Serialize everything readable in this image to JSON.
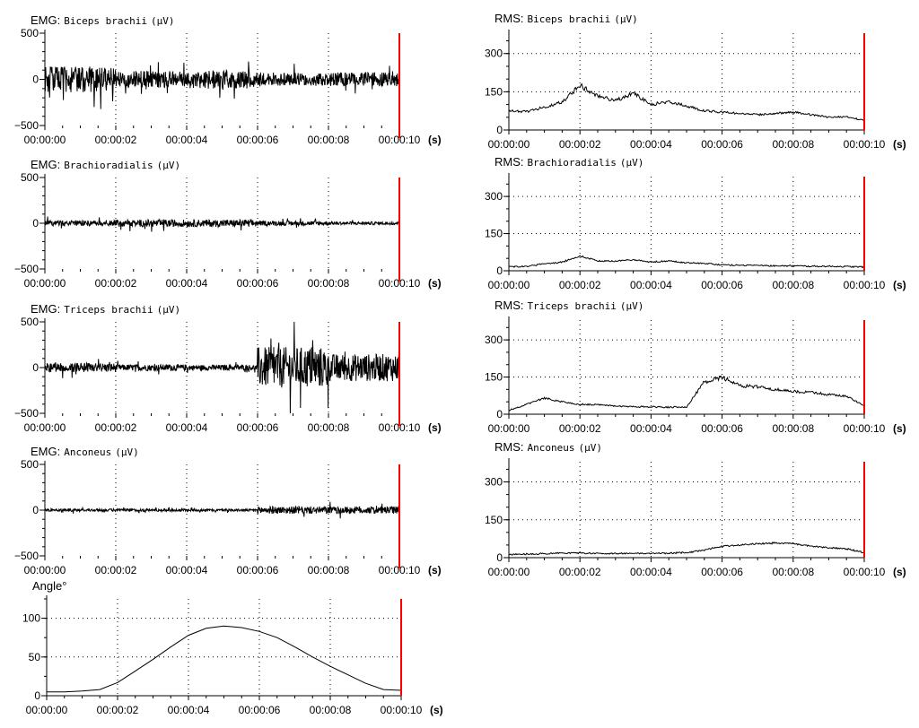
{
  "chart_data": [
    {
      "id": "emg-biceps",
      "type": "line",
      "kind": "emg",
      "title_prefix": "EMG:",
      "title_muscle": "Biceps brachii",
      "title_unit": "(µV)",
      "ylim": [
        -500,
        500
      ],
      "yticks": [
        -500,
        0,
        500
      ],
      "grid": true,
      "amp": [
        0.28,
        0.18,
        0.2,
        0.14,
        0.15,
        0.13
      ],
      "series": [
        {
          "x": [
            0,
            2,
            4,
            6,
            8,
            10
          ],
          "y": [
            0,
            0,
            0,
            0,
            0,
            0
          ]
        }
      ]
    },
    {
      "id": "rms-biceps",
      "type": "line",
      "kind": "rms",
      "title_prefix": "RMS:",
      "title_muscle": "Biceps brachii",
      "title_unit": "(µV)",
      "ylim": [
        0,
        380
      ],
      "yticks": [
        0,
        150,
        300
      ],
      "grid": true,
      "series": [
        {
          "x": [
            0,
            0.5,
            1,
            1.5,
            2,
            2.5,
            3,
            3.5,
            4,
            4.5,
            5,
            5.5,
            6,
            6.5,
            7,
            7.5,
            8,
            8.5,
            9,
            9.5,
            10
          ],
          "y": [
            75,
            72,
            90,
            110,
            175,
            135,
            115,
            145,
            100,
            110,
            95,
            75,
            70,
            65,
            60,
            65,
            70,
            60,
            50,
            52,
            38
          ]
        }
      ]
    },
    {
      "id": "emg-brachioradialis",
      "type": "line",
      "kind": "emg",
      "title_prefix": "EMG:",
      "title_muscle": "Brachioradialis",
      "title_unit": "(µV)",
      "ylim": [
        -500,
        500
      ],
      "yticks": [
        -500,
        0,
        500
      ],
      "grid": true,
      "amp": [
        0.06,
        0.08,
        0.08,
        0.05,
        0.035,
        0.03
      ],
      "series": [
        {
          "x": [
            0,
            2,
            4,
            6,
            8,
            10
          ],
          "y": [
            0,
            0,
            0,
            0,
            0,
            0
          ]
        }
      ]
    },
    {
      "id": "rms-brachioradialis",
      "type": "line",
      "kind": "rms",
      "title_prefix": "RMS:",
      "title_muscle": "Brachioradialis",
      "title_unit": "(µV)",
      "ylim": [
        0,
        380
      ],
      "yticks": [
        0,
        150,
        300
      ],
      "grid": true,
      "series": [
        {
          "x": [
            0,
            0.5,
            1,
            1.5,
            2,
            2.5,
            3,
            3.5,
            4,
            4.5,
            5,
            5.5,
            6,
            6.5,
            7,
            7.5,
            8,
            8.5,
            9,
            9.5,
            10
          ],
          "y": [
            15,
            18,
            28,
            35,
            60,
            40,
            38,
            45,
            35,
            40,
            32,
            30,
            24,
            22,
            22,
            20,
            20,
            18,
            18,
            17,
            15
          ]
        }
      ]
    },
    {
      "id": "emg-triceps",
      "type": "line",
      "kind": "emg",
      "title_prefix": "EMG:",
      "title_muscle": "Triceps brachii",
      "title_unit": "(µV)",
      "ylim": [
        -500,
        500
      ],
      "yticks": [
        -500,
        0,
        500
      ],
      "grid": true,
      "amp": [
        0.1,
        0.07,
        0.06,
        0.45,
        0.3,
        0.2
      ],
      "series": [
        {
          "x": [
            0,
            2,
            4,
            6,
            8,
            10
          ],
          "y": [
            0,
            0,
            0,
            0,
            0,
            0
          ]
        }
      ]
    },
    {
      "id": "rms-triceps",
      "type": "line",
      "kind": "rms",
      "title_prefix": "RMS:",
      "title_muscle": "Triceps brachii",
      "title_unit": "(µV)",
      "ylim": [
        0,
        380
      ],
      "yticks": [
        0,
        150,
        300
      ],
      "grid": true,
      "series": [
        {
          "x": [
            0,
            0.5,
            1,
            1.5,
            2,
            2.5,
            3,
            3.5,
            4,
            4.5,
            5,
            5.5,
            6,
            6.5,
            7,
            7.5,
            8,
            8.5,
            9,
            9.5,
            10
          ],
          "y": [
            15,
            40,
            65,
            50,
            40,
            38,
            33,
            30,
            30,
            28,
            30,
            130,
            150,
            115,
            110,
            100,
            92,
            88,
            80,
            72,
            35
          ]
        }
      ]
    },
    {
      "id": "emg-anconeus",
      "type": "line",
      "kind": "emg",
      "title_prefix": "EMG:",
      "title_muscle": "Anconeus",
      "title_unit": "(µV)",
      "ylim": [
        -500,
        500
      ],
      "yticks": [
        -500,
        0,
        500
      ],
      "grid": true,
      "amp": [
        0.03,
        0.03,
        0.025,
        0.08,
        0.08,
        0.04
      ],
      "series": [
        {
          "x": [
            0,
            2,
            4,
            6,
            8,
            10
          ],
          "y": [
            0,
            0,
            0,
            0,
            0,
            0
          ]
        }
      ]
    },
    {
      "id": "rms-anconeus",
      "type": "line",
      "kind": "rms",
      "title_prefix": "RMS:",
      "title_muscle": "Anconeus",
      "title_unit": "(µV)",
      "ylim": [
        0,
        380
      ],
      "yticks": [
        0,
        150,
        300
      ],
      "grid": true,
      "series": [
        {
          "x": [
            0,
            0.5,
            1,
            1.5,
            2,
            2.5,
            3,
            3.5,
            4,
            4.5,
            5,
            5.5,
            6,
            6.5,
            7,
            7.5,
            8,
            8.5,
            9,
            9.5,
            10
          ],
          "y": [
            12,
            14,
            16,
            18,
            18,
            17,
            16,
            17,
            17,
            18,
            20,
            30,
            45,
            50,
            55,
            58,
            55,
            45,
            40,
            35,
            20
          ]
        }
      ]
    },
    {
      "id": "angle",
      "type": "line",
      "kind": "angle",
      "title_prefix": "Angle°",
      "title_muscle": "",
      "title_unit": "",
      "ylim": [
        0,
        125
      ],
      "yticks": [
        0,
        50,
        100
      ],
      "grid": true,
      "series": [
        {
          "x": [
            0,
            0.5,
            1,
            1.5,
            2,
            2.5,
            3,
            3.5,
            4,
            4.5,
            5,
            5.5,
            6,
            6.5,
            7,
            7.5,
            8,
            8.5,
            9,
            9.5,
            10
          ],
          "y": [
            5,
            5,
            6,
            8,
            17,
            32,
            47,
            63,
            78,
            87,
            90,
            88,
            83,
            75,
            63,
            50,
            38,
            27,
            16,
            8,
            7
          ]
        }
      ]
    }
  ],
  "x_tick_labels": [
    "00:00:00",
    "00:00:02",
    "00:00:04",
    "00:00:06",
    "00:00:08",
    "00:00:10"
  ],
  "x_unit_label": "(s)",
  "colors": {
    "trace": "#000000",
    "cursor": "#ff0000",
    "grid": "#000000"
  }
}
